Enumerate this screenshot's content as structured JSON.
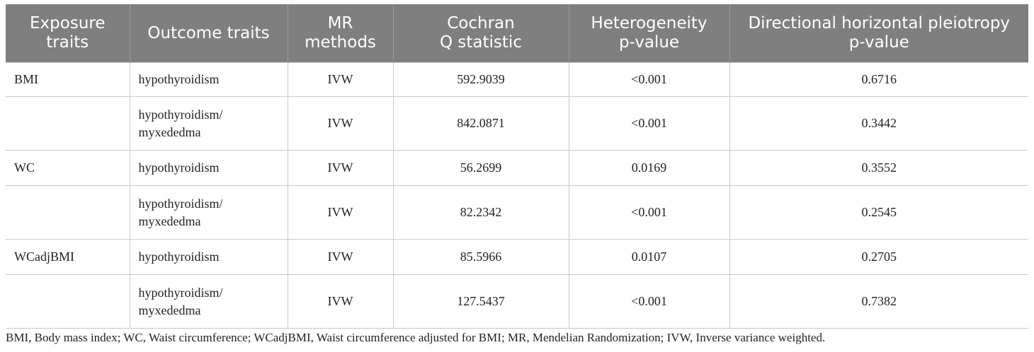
{
  "table": {
    "header": [
      "Exposure\ntraits",
      "Outcome traits",
      "MR\nmethods",
      "Cochran\nQ statistic",
      "Heterogeneity\np-value",
      "Directional horizontal pleiotropy\np-value"
    ],
    "rows": [
      [
        "BMI",
        "hypothyroidism",
        "IVW",
        "592.9039",
        "<0.001",
        "0.6716"
      ],
      [
        null,
        "hypothyroidism/\nmyxededma",
        "IVW",
        "842.0871",
        "<0.001",
        "0.3442"
      ],
      [
        "WC",
        "hypothyroidism",
        "IVW",
        "56.2699",
        "0.0169",
        "0.3552"
      ],
      [
        null,
        "hypothyroidism/\nmyxededma",
        "IVW",
        "82.2342",
        "<0.001",
        "0.2545"
      ],
      [
        "WCadjBMI",
        "hypothyroidism",
        "IVW",
        "85.5966",
        "0.0107",
        "0.2705"
      ],
      [
        null,
        "hypothyroidism/\nmyxededma",
        "IVW",
        "127.5437",
        "<0.001",
        "0.7382"
      ]
    ]
  },
  "footnote": "BMI, Body mass index; WC, Waist circumference; WCadjBMI, Waist circumference adjusted for BMI; MR, Mendelian Randomization; IVW, Inverse variance weighted."
}
